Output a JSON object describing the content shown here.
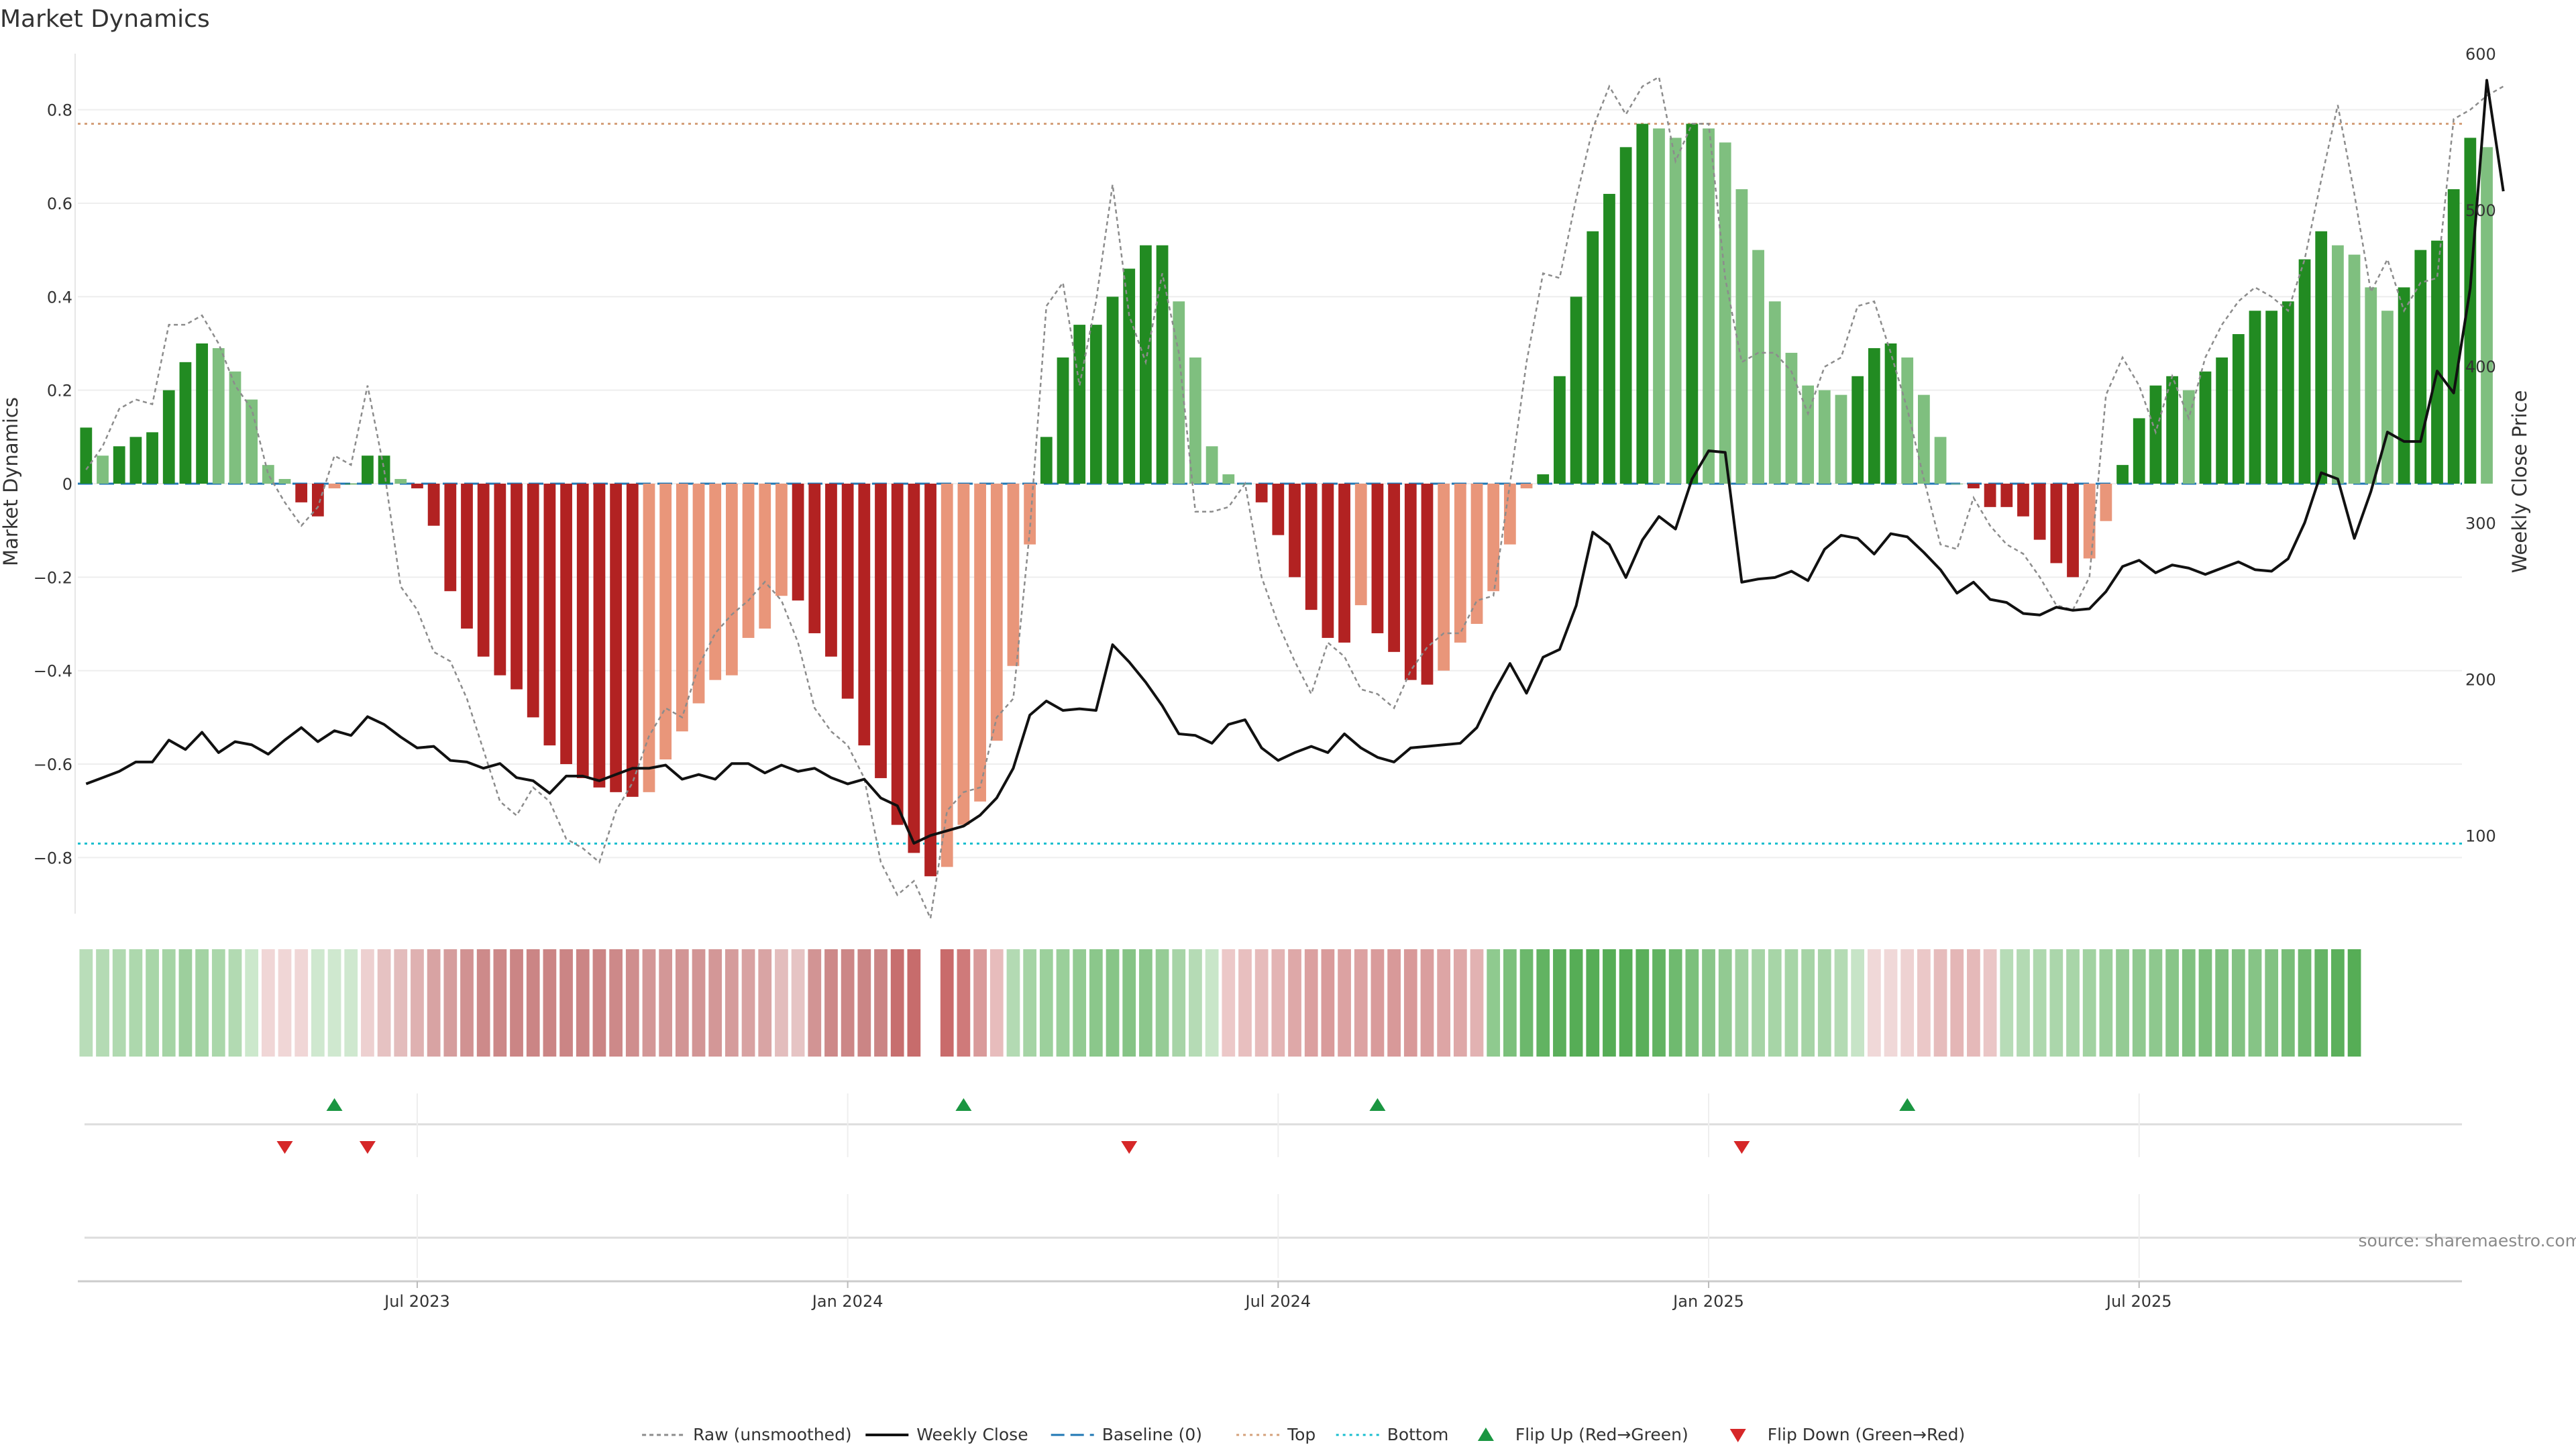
{
  "chart_data": {
    "type": "bar",
    "title": "Market Dynamics",
    "ylabel_left": "Market Dynamics",
    "ylabel_right": "Weekly Close Price",
    "source": "source: sharemaestro.com",
    "ylim_left": [
      -0.92,
      0.92
    ],
    "ylim_right": [
      50,
      600
    ],
    "left_ticks": [
      {
        "v": 0.8,
        "label": "0.8"
      },
      {
        "v": 0.6,
        "label": "0.6"
      },
      {
        "v": 0.4,
        "label": "0.4"
      },
      {
        "v": 0.2,
        "label": "0.2"
      },
      {
        "v": 0,
        "label": "0"
      },
      {
        "v": -0.2,
        "label": "−0.2"
      },
      {
        "v": -0.4,
        "label": "−0.4"
      },
      {
        "v": -0.6,
        "label": "−0.6"
      },
      {
        "v": -0.8,
        "label": "−0.8"
      }
    ],
    "right_ticks": [
      {
        "v": 600,
        "label": "600"
      },
      {
        "v": 500,
        "label": "500"
      },
      {
        "v": 400,
        "label": "400"
      },
      {
        "v": 300,
        "label": "300"
      },
      {
        "v": 200,
        "label": "200"
      },
      {
        "v": 100,
        "label": "100"
      }
    ],
    "x_ticks": [
      {
        "week": 20,
        "label": "Jul 2023"
      },
      {
        "week": 46,
        "label": "Jan 2024"
      },
      {
        "week": 72,
        "label": "Jul 2024"
      },
      {
        "week": 98,
        "label": "Jan 2025"
      },
      {
        "week": 124,
        "label": "Jul 2025"
      }
    ],
    "num_weeks": 144,
    "top_level": 0.77,
    "bottom_level": -0.77,
    "baseline": 0,
    "colors": {
      "up_strong": "#228b22",
      "up_weak": "#7fbf7f",
      "down_strong": "#b22222",
      "down_weak": "#e9967a",
      "raw": "#8c8c8c",
      "close": "#111111",
      "baseline": "#1f77b4",
      "top": "#d4a07a",
      "bottom": "#17becf",
      "flip_up": "#1a9641",
      "flip_down": "#d62728"
    },
    "series": [
      {
        "name": "Market Dynamics",
        "values": [
          0.12,
          0.06,
          0.08,
          0.1,
          0.11,
          0.2,
          0.26,
          0.3,
          0.29,
          0.24,
          0.18,
          0.04,
          0.01,
          -0.04,
          -0.07,
          -0.01,
          0.0,
          0.06,
          0.06,
          0.01,
          -0.01,
          -0.09,
          -0.23,
          -0.31,
          -0.37,
          -0.41,
          -0.44,
          -0.5,
          -0.56,
          -0.6,
          -0.63,
          -0.65,
          -0.66,
          -0.67,
          -0.66,
          -0.59,
          -0.53,
          -0.47,
          -0.42,
          -0.41,
          -0.33,
          -0.31,
          -0.24,
          -0.25,
          -0.32,
          -0.37,
          -0.46,
          -0.56,
          -0.63,
          -0.73,
          -0.79,
          -0.84,
          -0.82,
          -0.73,
          -0.68,
          -0.55,
          -0.39,
          -0.13,
          0.1,
          0.27,
          0.34,
          0.34,
          0.4,
          0.46,
          0.51,
          0.51,
          0.39,
          0.27,
          0.08,
          0.02,
          0.0,
          -0.04,
          -0.11,
          -0.2,
          -0.27,
          -0.33,
          -0.34,
          -0.26,
          -0.32,
          -0.36,
          -0.42,
          -0.43,
          -0.4,
          -0.34,
          -0.3,
          -0.23,
          -0.13,
          -0.01,
          0.02,
          0.23,
          0.4,
          0.54,
          0.62,
          0.72,
          0.77,
          0.76,
          0.74,
          0.77,
          0.76,
          0.73,
          0.63,
          0.5,
          0.39,
          0.28,
          0.21,
          0.2,
          0.19,
          0.23,
          0.29,
          0.3,
          0.27,
          0.19,
          0.1,
          0.0,
          -0.01,
          -0.05,
          -0.05,
          -0.07,
          -0.12,
          -0.17,
          -0.2,
          -0.16,
          -0.08,
          0.04,
          0.14,
          0.21,
          0.23,
          0.2,
          0.24,
          0.27,
          0.32,
          0.37,
          0.37,
          0.39,
          0.48,
          0.54,
          0.51,
          0.49,
          0.42,
          0.37,
          0.42,
          0.5,
          0.52,
          0.63,
          0.74,
          0.72
        ]
      },
      {
        "name": "Raw (unsmoothed)",
        "values": [
          0.03,
          0.08,
          0.16,
          0.18,
          0.17,
          0.34,
          0.34,
          0.36,
          0.3,
          0.21,
          0.16,
          0.02,
          -0.04,
          -0.09,
          -0.05,
          0.06,
          0.04,
          0.21,
          0.03,
          -0.22,
          -0.27,
          -0.36,
          -0.38,
          -0.46,
          -0.57,
          -0.68,
          -0.71,
          -0.65,
          -0.68,
          -0.76,
          -0.78,
          -0.81,
          -0.7,
          -0.64,
          -0.54,
          -0.48,
          -0.5,
          -0.39,
          -0.32,
          -0.28,
          -0.25,
          -0.21,
          -0.25,
          -0.34,
          -0.48,
          -0.53,
          -0.56,
          -0.63,
          -0.81,
          -0.88,
          -0.85,
          -0.93,
          -0.7,
          -0.66,
          -0.65,
          -0.5,
          -0.46,
          -0.1,
          0.38,
          0.43,
          0.21,
          0.39,
          0.64,
          0.36,
          0.26,
          0.45,
          0.28,
          -0.06,
          -0.06,
          -0.05,
          0.0,
          -0.2,
          -0.3,
          -0.38,
          -0.45,
          -0.34,
          -0.37,
          -0.44,
          -0.45,
          -0.48,
          -0.4,
          -0.35,
          -0.32,
          -0.32,
          -0.25,
          -0.24,
          0.0,
          0.26,
          0.45,
          0.44,
          0.61,
          0.76,
          0.85,
          0.79,
          0.85,
          0.87,
          0.69,
          0.77,
          0.77,
          0.44,
          0.26,
          0.28,
          0.28,
          0.24,
          0.15,
          0.25,
          0.27,
          0.38,
          0.39,
          0.28,
          0.16,
          0.01,
          -0.13,
          -0.14,
          -0.03,
          -0.09,
          -0.13,
          -0.15,
          -0.2,
          -0.26,
          -0.27,
          -0.2,
          0.19,
          0.27,
          0.21,
          0.11,
          0.23,
          0.14,
          0.27,
          0.34,
          0.39,
          0.42,
          0.4,
          0.37,
          0.48,
          0.65,
          0.81,
          0.62,
          0.41,
          0.48,
          0.37,
          0.43,
          0.44,
          0.78,
          0.8,
          0.83,
          0.85
        ]
      },
      {
        "name": "Weekly Close",
        "values": [
          133,
          137,
          141,
          147,
          147,
          161,
          155,
          166,
          153,
          160,
          158,
          152,
          161,
          169,
          160,
          167,
          164,
          176,
          171,
          163,
          156,
          157,
          148,
          147,
          143,
          146,
          137,
          135,
          127,
          138,
          138,
          135,
          139,
          143,
          143,
          145,
          136,
          139,
          136,
          146,
          146,
          140,
          145,
          141,
          143,
          137,
          133,
          136,
          124,
          119,
          95,
          100,
          103,
          106,
          113,
          124,
          143,
          177,
          186,
          180,
          181,
          180,
          222,
          211,
          198,
          183,
          165,
          164,
          159,
          171,
          174,
          156,
          148,
          153,
          157,
          153,
          165,
          156,
          150,
          147,
          156,
          157,
          158,
          159,
          169,
          191,
          210,
          191,
          214,
          219,
          247,
          294,
          286,
          265,
          289,
          304,
          296,
          328,
          346,
          345,
          262,
          264,
          265,
          269,
          263,
          283,
          292,
          290,
          280,
          293,
          291,
          281,
          270,
          255,
          262,
          251,
          249,
          242,
          241,
          246,
          244,
          245,
          256,
          272,
          276,
          268,
          273,
          271,
          267,
          271,
          275,
          270,
          269,
          277,
          300,
          332,
          328,
          290,
          320,
          358,
          352,
          352,
          397,
          383,
          450,
          583,
          512
        ]
      }
    ],
    "strip_colors": [
      "#b9ddb9",
      "#b4dbb4",
      "#b0d9b0",
      "#add8ad",
      "#a8d6a8",
      "#a5d4a5",
      "#9dcf9d",
      "#a3d3a3",
      "#aad7aa",
      "#b2dab2",
      "#cce8cc",
      "#f0d6d6",
      "#f0d6d6",
      "#f0d6d6",
      "#cfe8cf",
      "#cfe8cf",
      "#cfe8cf",
      "#edd0d0",
      "#e6c2c2",
      "#e3bcbc",
      "#dfb1b1",
      "#d8a3a3",
      "#d59d9d",
      "#d19292",
      "#cd8a8a",
      "#cc8888",
      "#cb8585",
      "#cb8585",
      "#cb8585",
      "#cb8585",
      "#cb8585",
      "#cb8585",
      "#cd8989",
      "#cf8e8e",
      "#d39797",
      "#d39797",
      "#d29595",
      "#d29595",
      "#d39797",
      "#d59c9c",
      "#d8a2a2",
      "#d9a4a4",
      "#e3bdbd",
      "#e6c4c4",
      "#d29494",
      "#cd8989",
      "#cc8787",
      "#cb8585",
      "#cb8585",
      "#c76f6f",
      "#c76c6c",
      null,
      "#c96b6b",
      "#cf7a7a",
      "#d99a9a",
      "#e7bcbc",
      "#b3dab3",
      "#a5d4a5",
      "#9cd09c",
      "#9acf9a",
      "#93cb93",
      "#8bc78b",
      "#87c587",
      "#86c486",
      "#8cc78c",
      "#96cc96",
      "#a7d4a7",
      "#b5dbb5",
      "#c9e6c9",
      "#ecc8c8",
      "#e8bfbf",
      "#e6bbbb",
      "#e3b4b4",
      "#dea8a8",
      "#dba0a0",
      "#d99b9b",
      "#dca2a2",
      "#dca2a2",
      "#d99b9b",
      "#d89999",
      "#d89999",
      "#da9e9e",
      "#dda5a5",
      "#dea8a8",
      "#e2b2b2",
      "#8fca8f",
      "#7bc07b",
      "#6cb86c",
      "#62b362",
      "#5baf5b",
      "#56ad56",
      "#56ad56",
      "#56ad56",
      "#56ad56",
      "#5aaf5a",
      "#62b362",
      "#6fba6f",
      "#7cc07c",
      "#89c689",
      "#92ca92",
      "#a0d1a0",
      "#a6d4a6",
      "#a7d5a7",
      "#a7d5a7",
      "#a6d4a6",
      "#a8d5a8",
      "#b4dbb4",
      "#c7e4c7",
      "#f0d8d8",
      "#f0d8d8",
      "#eed2d2",
      "#ebc8c8",
      "#e6bcbc",
      "#e4b6b6",
      "#e5b9b9",
      "#eac6c6",
      "#b7dcb7",
      "#b3dab3",
      "#aed8ae",
      "#abd6ab",
      "#a8d5a8",
      "#a1d2a1",
      "#9bcf9b",
      "#94cb94",
      "#90c990",
      "#8ec88e",
      "#88c588",
      "#80c180",
      "#7cbf7c",
      "#7fc07f",
      "#83c283",
      "#86c486",
      "#82c282",
      "#78bd78",
      "#6fb96f",
      "#66b466",
      "#5cb05c",
      "#56ad56"
    ],
    "flip_up_weeks": [
      15,
      53,
      78,
      110
    ],
    "flip_down_weeks": [
      12,
      17,
      63,
      100
    ],
    "legend": [
      {
        "key": "raw",
        "label": "Raw (unsmoothed)"
      },
      {
        "key": "close",
        "label": "Weekly Close"
      },
      {
        "key": "baseline",
        "label": "Baseline (0)"
      },
      {
        "key": "top",
        "label": "Top"
      },
      {
        "key": "bottom",
        "label": "Bottom"
      },
      {
        "key": "flip_up",
        "label": "Flip Up (Red→Green)"
      },
      {
        "key": "flip_down",
        "label": "Flip Down (Green→Red)"
      }
    ]
  }
}
